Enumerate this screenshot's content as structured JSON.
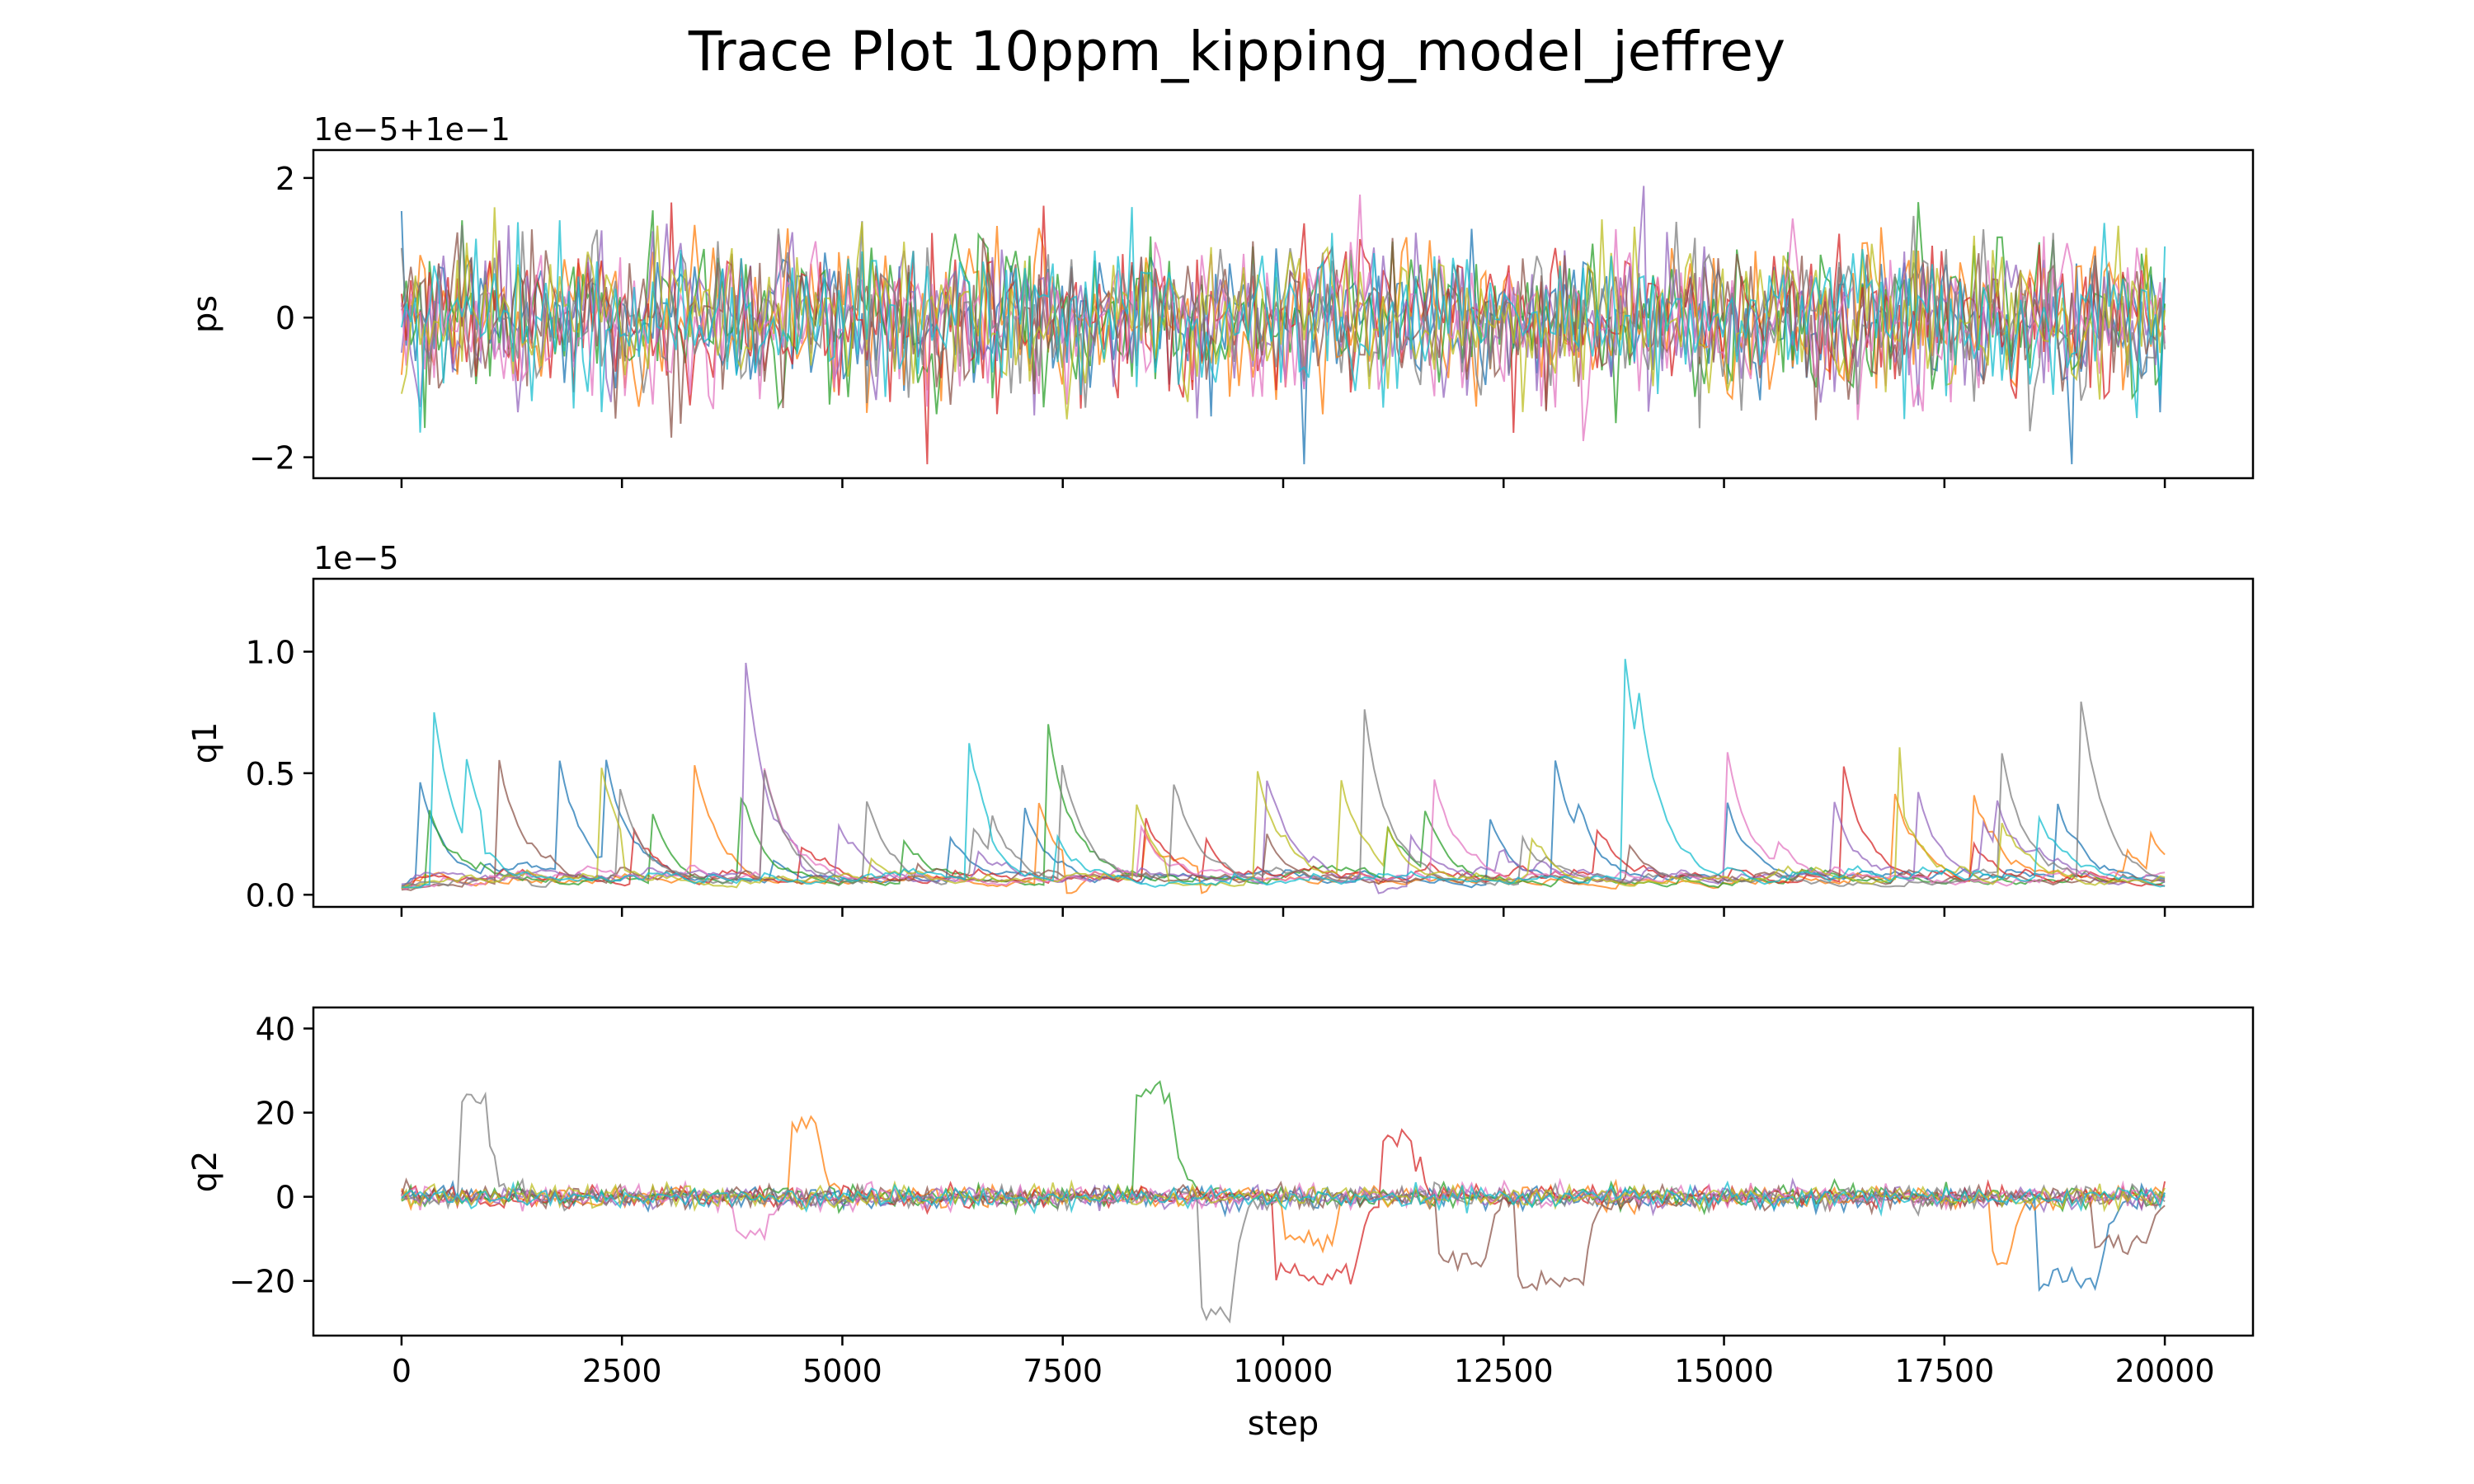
{
  "chart_data": {
    "type": "line",
    "title": "Trace Plot 10ppm_kipping_model_jeffrey",
    "xlabel": "step",
    "xlim": [
      -1000,
      21000
    ],
    "xticks": [
      0,
      2500,
      5000,
      7500,
      10000,
      12500,
      15000,
      17500,
      20000
    ],
    "xtick_labels": [
      "0",
      "2500",
      "5000",
      "7500",
      "10000",
      "12500",
      "15000",
      "17500",
      "20000"
    ],
    "series_colors": [
      "#1f77b4",
      "#ff7f0e",
      "#2ca02c",
      "#d62728",
      "#9467bd",
      "#8c564b",
      "#e377c2",
      "#7f7f7f",
      "#bcbd22",
      "#17becf"
    ],
    "grid": false,
    "panels": [
      {
        "ylabel": "ps",
        "offset_label": "1e−5+1e−1",
        "ylim": [
          -2.3,
          2.4
        ],
        "yticks": [
          -2,
          0,
          2
        ],
        "ytick_labels": [
          "−2",
          "0",
          "2"
        ],
        "x_ticklabels_shown": false,
        "trace_style": "noise",
        "trace_center": 0.0,
        "trace_spread": 0.55,
        "trace_range": [
          -2.1,
          2.2
        ]
      },
      {
        "ylabel": "q1",
        "offset_label": "1e−5",
        "ylim": [
          -0.05,
          1.3
        ],
        "yticks": [
          0.0,
          0.5,
          1.0
        ],
        "ytick_labels": [
          "0.0",
          "0.5",
          "1.0"
        ],
        "x_ticklabels_shown": false,
        "trace_style": "spiky",
        "trace_center": 0.0,
        "trace_spread": 0.12,
        "trace_range": [
          0.0,
          1.24
        ]
      },
      {
        "ylabel": "q2",
        "offset_label": "",
        "ylim": [
          -33,
          45
        ],
        "yticks": [
          -20,
          0,
          20,
          40
        ],
        "ytick_labels": [
          "−20",
          "0",
          "20",
          "40"
        ],
        "x_ticklabels_shown": true,
        "trace_style": "excursion",
        "trace_center": 0.0,
        "trace_spread": 1.3,
        "trace_range": [
          -30,
          41
        ]
      }
    ]
  }
}
